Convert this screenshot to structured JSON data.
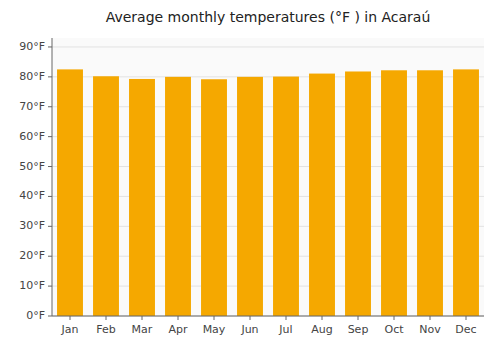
{
  "chart_data": {
    "type": "bar",
    "title": "Average monthly temperatures (°F ) in Acaraú",
    "categories": [
      "Jan",
      "Feb",
      "Mar",
      "Apr",
      "May",
      "Jun",
      "Jul",
      "Aug",
      "Sep",
      "Oct",
      "Nov",
      "Dec"
    ],
    "values": [
      82.5,
      80.2,
      79.3,
      80.0,
      79.2,
      80.0,
      80.1,
      81.1,
      81.8,
      82.2,
      82.2,
      82.5
    ],
    "color": "#F5A800",
    "ylim": [
      0,
      93
    ],
    "yticks": [
      {
        "value": 0,
        "label": "0°F"
      },
      {
        "value": 10,
        "label": "10°F"
      },
      {
        "value": 20,
        "label": "20°F"
      },
      {
        "value": 30,
        "label": "30°F"
      },
      {
        "value": 40,
        "label": "40°F"
      },
      {
        "value": 50,
        "label": "50°F"
      },
      {
        "value": 60,
        "label": "60°F"
      },
      {
        "value": 70,
        "label": "70°F"
      },
      {
        "value": 80,
        "label": "80°F"
      },
      {
        "value": 90,
        "label": "90°F"
      }
    ],
    "grid": true
  }
}
